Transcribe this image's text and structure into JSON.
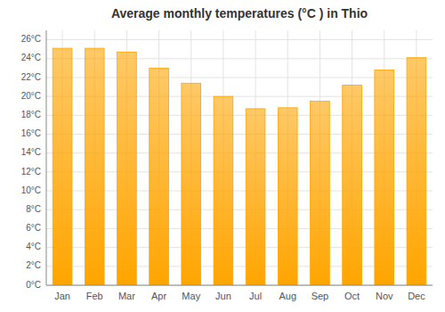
{
  "chart_data": {
    "type": "bar",
    "title": "Average monthly temperatures (°C ) in Thio",
    "categories": [
      "Jan",
      "Feb",
      "Mar",
      "Apr",
      "May",
      "Jun",
      "Jul",
      "Aug",
      "Sep",
      "Oct",
      "Nov",
      "Dec"
    ],
    "values": [
      25.1,
      25.1,
      24.7,
      23.0,
      21.4,
      20.0,
      18.7,
      18.8,
      19.5,
      21.2,
      22.8,
      24.1
    ],
    "color": "#FFA500",
    "ylim": [
      0,
      27
    ],
    "yticks": [
      {
        "value": 0,
        "label": "0°C"
      },
      {
        "value": 2,
        "label": "2°C"
      },
      {
        "value": 4,
        "label": "4°C"
      },
      {
        "value": 6,
        "label": "6°C"
      },
      {
        "value": 8,
        "label": "8°C"
      },
      {
        "value": 10,
        "label": "10°C"
      },
      {
        "value": 12,
        "label": "12°C"
      },
      {
        "value": 14,
        "label": "14°C"
      },
      {
        "value": 16,
        "label": "16°C"
      },
      {
        "value": 18,
        "label": "18°C"
      },
      {
        "value": 20,
        "label": "20°C"
      },
      {
        "value": 22,
        "label": "22°C"
      },
      {
        "value": 24,
        "label": "24°C"
      },
      {
        "value": 26,
        "label": "26°C"
      }
    ],
    "grid": true
  }
}
